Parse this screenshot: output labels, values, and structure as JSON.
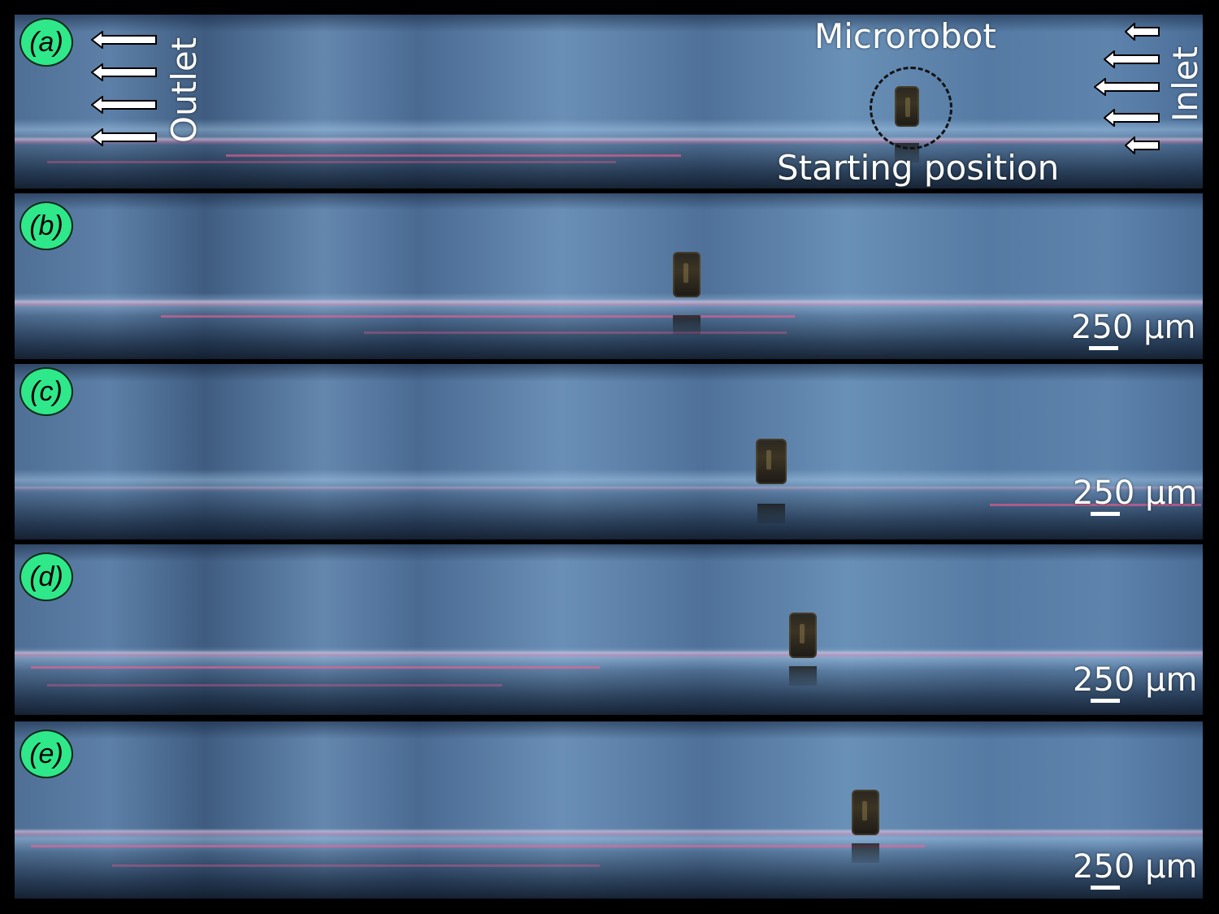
{
  "panels": [
    {
      "label": "(a)",
      "scale": null
    },
    {
      "label": "(b)",
      "scale": "250 µm"
    },
    {
      "label": "(c)",
      "scale": "250 µm"
    },
    {
      "label": "(d)",
      "scale": "250 µm"
    },
    {
      "label": "(e)",
      "scale": "250 µm"
    }
  ],
  "annotations": {
    "outlet": "Outlet",
    "inlet": "Inlet",
    "microrobot": "Microrobot",
    "starting_position": "Starting position"
  },
  "colors": {
    "badge": "#2ee88a",
    "arrow_fill": "#ffffff",
    "arrow_stroke": "#000000"
  }
}
